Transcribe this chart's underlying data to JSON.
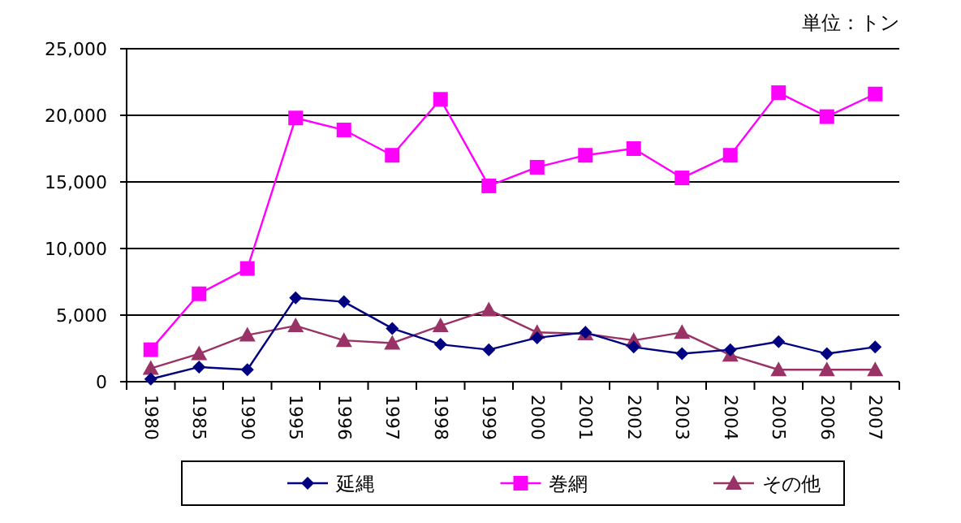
{
  "chart_data": {
    "type": "line",
    "annotations": [
      "単位：トン"
    ],
    "categories": [
      "1980",
      "1985",
      "1990",
      "1995",
      "1996",
      "1997",
      "1998",
      "1999",
      "2000",
      "2001",
      "2002",
      "2003",
      "2004",
      "2005",
      "2006",
      "2007"
    ],
    "series": [
      {
        "name": "延縄",
        "color": "#000080",
        "marker": "diamond",
        "values": [
          200,
          1100,
          900,
          6300,
          6000,
          4000,
          2800,
          2400,
          3300,
          3700,
          2600,
          2100,
          2400,
          3000,
          2100,
          2600
        ]
      },
      {
        "name": "巻網",
        "color": "#ff00ff",
        "marker": "square",
        "values": [
          2400,
          6600,
          8500,
          19800,
          18900,
          17000,
          21200,
          14700,
          16100,
          17000,
          17500,
          15300,
          17000,
          21700,
          19900,
          21600
        ]
      },
      {
        "name": "その他",
        "color": "#993366",
        "marker": "triangle",
        "values": [
          1000,
          2100,
          3500,
          4200,
          3100,
          2900,
          4200,
          5400,
          3700,
          3600,
          3100,
          3700,
          2000,
          900,
          900,
          900
        ]
      }
    ],
    "ylim": [
      0,
      25000
    ],
    "yticks": [
      {
        "value": 0,
        "label": "0"
      },
      {
        "value": 5000,
        "label": "5,000"
      },
      {
        "value": 10000,
        "label": "10,000"
      },
      {
        "value": 15000,
        "label": "15,000"
      },
      {
        "value": 20000,
        "label": "20,000"
      },
      {
        "value": 25000,
        "label": "25,000"
      }
    ],
    "grid": "y",
    "legend": "bottom"
  }
}
